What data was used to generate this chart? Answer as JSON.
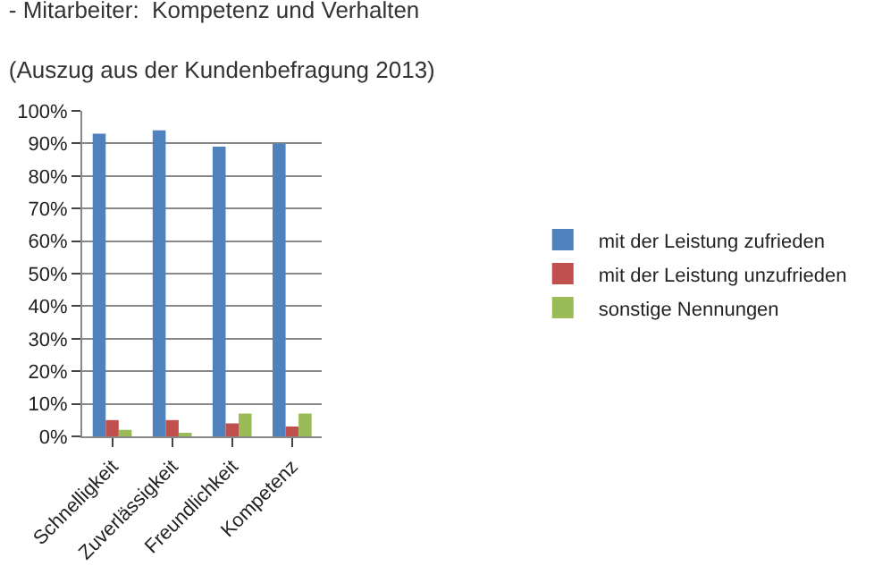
{
  "chart_data": {
    "type": "bar",
    "title": "- Mitarbeiter:  Kompetenz und Verhalten",
    "subtitle": "(Auszug aus der Kundenbefragung 2013)",
    "categories": [
      "Schnelligkeit",
      "Zuverlässigkeit",
      "Freundlichkeit",
      "Kompetenz"
    ],
    "series": [
      {
        "name": "mit der Leistung zufrieden",
        "color": "#4f81bd",
        "values": [
          93,
          94,
          89,
          90
        ]
      },
      {
        "name": "mit der Leistung unzufrieden",
        "color": "#c0504d",
        "values": [
          5,
          5,
          4,
          3
        ]
      },
      {
        "name": "sonstige Nennungen",
        "color": "#9bbb59",
        "values": [
          2,
          1,
          7,
          7
        ]
      }
    ],
    "ylim": [
      0,
      100
    ],
    "yticks": [
      {
        "value": 0,
        "label": "0%"
      },
      {
        "value": 10,
        "label": "10%"
      },
      {
        "value": 20,
        "label": "20%"
      },
      {
        "value": 30,
        "label": "30%"
      },
      {
        "value": 40,
        "label": "40%"
      },
      {
        "value": 50,
        "label": "50%"
      },
      {
        "value": 60,
        "label": "60%"
      },
      {
        "value": 70,
        "label": "70%"
      },
      {
        "value": 80,
        "label": "80%"
      },
      {
        "value": 90,
        "label": "90%"
      },
      {
        "value": 100,
        "label": "100%"
      }
    ],
    "grid": "y",
    "legend": "right"
  }
}
